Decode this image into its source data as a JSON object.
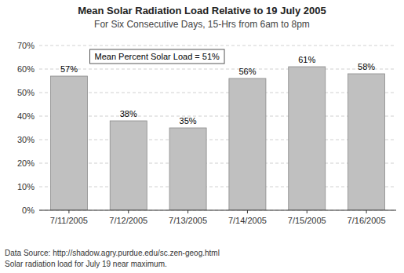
{
  "chart_data": {
    "type": "bar",
    "title": "Mean Solar Radiation Load Relative to 19 July 2005",
    "subtitle": "For Six Consecutive Days, 15-Hrs from 6am to 8pm",
    "categories": [
      "7/11/2005",
      "7/12/2005",
      "7/13/2005",
      "7/14/2005",
      "7/15/2005",
      "7/16/2005"
    ],
    "values": [
      57,
      38,
      35,
      56,
      61,
      58
    ],
    "value_labels": [
      "57%",
      "38%",
      "35%",
      "56%",
      "61%",
      "58%"
    ],
    "data_labels": true,
    "color": "#c0c0c0",
    "ylim": [
      0,
      70
    ],
    "yticks": [
      {
        "value": 0,
        "label": "0%"
      },
      {
        "value": 10,
        "label": "10%"
      },
      {
        "value": 20,
        "label": "20%"
      },
      {
        "value": 30,
        "label": "30%"
      },
      {
        "value": 40,
        "label": "40%"
      },
      {
        "value": 50,
        "label": "50%"
      },
      {
        "value": 60,
        "label": "60%"
      },
      {
        "value": 70,
        "label": "70%"
      }
    ],
    "grid": true,
    "annotations": [
      "Mean Percent Solar Load = 51%"
    ],
    "footnotes": [
      "Data Source: http://shadow.agry.purdue.edu/sc.zen-geog.html",
      "Solar radiation load for July 19 near maximum."
    ]
  }
}
